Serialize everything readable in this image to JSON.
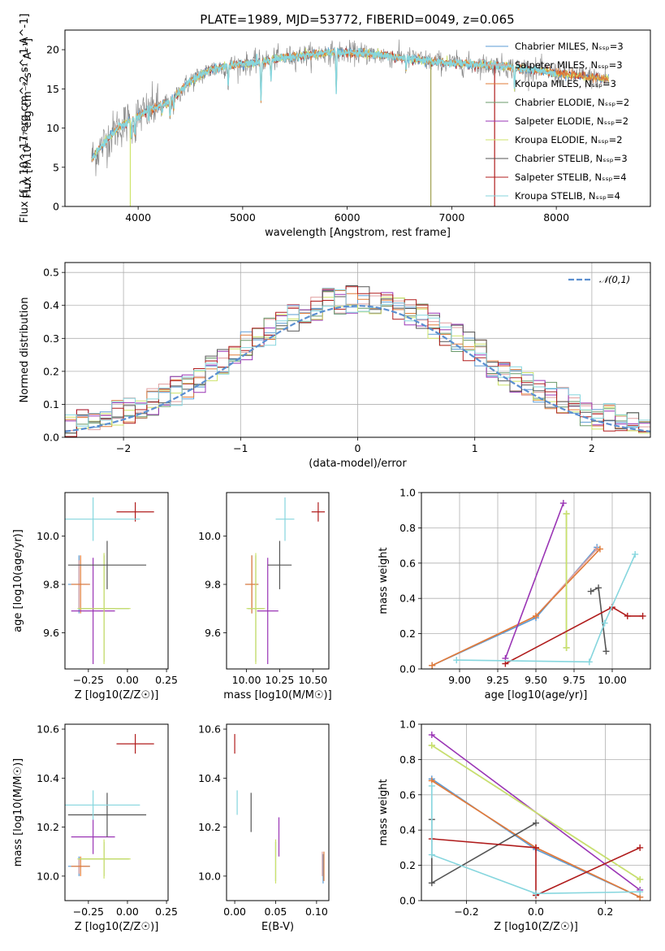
{
  "figure_title": "PLATE=1989, MJD=53772, FIBERID=0049, z=0.065",
  "colors": {
    "chabrier_miles": "#5b9bd5",
    "salpeter_miles": "#e0a0a0",
    "kroupa_miles": "#e07b39",
    "chabrier_elodie": "#6a9a6a",
    "salpeter_elodie": "#9a35b5",
    "kroupa_elodie": "#cde36a",
    "chabrier_stelib": "#555555",
    "salpeter_stelib": "#b01c1c",
    "kroupa_stelib": "#86d6de",
    "data_line": "#808080",
    "normal_curve": "#5b8fd0"
  },
  "legend_spectrum": [
    "Chabrier MILES, N_SSP=3",
    "Salpeter MILES, N_SSP=3",
    "Kroupa MILES, N_SSP=3",
    "Chabrier ELODIE, N_SSP=2",
    "Salpeter ELODIE, N_SSP=2",
    "Kroupa ELODIE, N_SSP=2",
    "Chabrier STELIB, N_SSP=3",
    "Salpeter STELIB, N_SSP=4",
    "Kroupa STELIB, N_SSP=4"
  ],
  "chart_data": [
    {
      "type": "line",
      "ylabel": "Flux [f_λ 10^-17 erg cm^-2 s^-1 A^-1]",
      "xlabel": "wavelength [Angstrom, rest frame]",
      "xlim": [
        3300,
        8900
      ],
      "ylim": [
        0,
        22.5
      ],
      "xticks": [
        4000,
        5000,
        6000,
        7000,
        8000
      ],
      "yticks": [
        0,
        5,
        10,
        15,
        20
      ],
      "continuum": [
        [
          3550,
          6.0
        ],
        [
          3700,
          8.5
        ],
        [
          3800,
          10.0
        ],
        [
          3900,
          10.8
        ],
        [
          4000,
          11.5
        ],
        [
          4100,
          12.3
        ],
        [
          4300,
          13.3
        ],
        [
          4500,
          16.0
        ],
        [
          4700,
          17.5
        ],
        [
          4900,
          18.0
        ],
        [
          5100,
          18.3
        ],
        [
          5300,
          18.8
        ],
        [
          5600,
          19.3
        ],
        [
          5900,
          19.7
        ],
        [
          6200,
          19.5
        ],
        [
          6500,
          19.0
        ],
        [
          6800,
          18.5
        ],
        [
          7100,
          18.2
        ],
        [
          7400,
          18.0
        ],
        [
          7700,
          17.6
        ],
        [
          8000,
          17.0
        ],
        [
          8300,
          16.5
        ],
        [
          8500,
          16.2
        ]
      ],
      "absorption_lines": [
        [
          3934,
          8.5
        ],
        [
          3969,
          9.0
        ],
        [
          4102,
          11.0
        ],
        [
          4227,
          12.0
        ],
        [
          4305,
          11.5
        ],
        [
          4340,
          12.5
        ],
        [
          4861,
          15.5
        ],
        [
          5175,
          13.5
        ],
        [
          5270,
          16.5
        ],
        [
          5895,
          14.5
        ],
        [
          6563,
          17.5
        ],
        [
          7600,
          15.0
        ]
      ],
      "drop_lines": [
        [
          3925,
          0.0
        ],
        [
          6800,
          0.0
        ],
        [
          7410,
          0.0
        ]
      ],
      "legend_position": "right"
    },
    {
      "type": "histogram",
      "xlabel": "(data-model)/error",
      "ylabel": "Normed distribution",
      "xlim": [
        -2.5,
        2.5
      ],
      "ylim": [
        0,
        0.53
      ],
      "xticks": [
        -2,
        -1,
        0,
        1,
        2
      ],
      "yticks": [
        0.0,
        0.1,
        0.2,
        0.3,
        0.4,
        0.5
      ],
      "bin_width": 0.1,
      "reference_label": "N(0,1)",
      "legend_position": "top-right"
    },
    {
      "type": "scatter",
      "name": "age_vs_Z",
      "xlabel": "Z [log10(Z/Z☉)]",
      "ylabel": "age [log10(age/yr)]",
      "xlim": [
        -0.4,
        0.26
      ],
      "ylim": [
        9.45,
        10.18
      ],
      "xticks": [
        -0.25,
        0.0,
        0.25
      ],
      "yticks": [
        9.6,
        9.8,
        10.0
      ],
      "points": [
        {
          "series": "chabrier_miles",
          "x": -0.31,
          "y": 9.8,
          "xerr": 0.07,
          "yerr": 0.12
        },
        {
          "series": "salpeter_miles",
          "x": -0.31,
          "y": 9.8,
          "xerr": 0.05,
          "yerr": 0.1
        },
        {
          "series": "kroupa_miles",
          "x": -0.3,
          "y": 9.8,
          "xerr": 0.06,
          "yerr": 0.12
        },
        {
          "series": "chabrier_elodie",
          "x": -0.15,
          "y": 9.7,
          "xerr": 0.16,
          "yerr": 0.22
        },
        {
          "series": "salpeter_elodie",
          "x": -0.22,
          "y": 9.69,
          "xerr": 0.14,
          "yerr": 0.22
        },
        {
          "series": "kroupa_elodie",
          "x": -0.15,
          "y": 9.7,
          "xerr": 0.17,
          "yerr": 0.23
        },
        {
          "series": "chabrier_stelib",
          "x": -0.13,
          "y": 9.88,
          "xerr": 0.25,
          "yerr": 0.1
        },
        {
          "series": "salpeter_stelib",
          "x": 0.05,
          "y": 10.1,
          "xerr": 0.12,
          "yerr": 0.04
        },
        {
          "series": "kroupa_stelib",
          "x": -0.22,
          "y": 10.07,
          "xerr": 0.3,
          "yerr": 0.09
        }
      ]
    },
    {
      "type": "scatter",
      "name": "age_vs_mass",
      "xlabel": "mass [log10(M/M☉)]",
      "ylabel": "",
      "xlim": [
        9.85,
        10.62
      ],
      "ylim": [
        9.45,
        10.18
      ],
      "xticks": [
        10.0,
        10.25,
        10.5
      ],
      "yticks": [
        9.6,
        9.8,
        10.0
      ],
      "points": [
        {
          "series": "chabrier_miles",
          "x": 10.04,
          "y": 9.8,
          "xerr": 0.05,
          "yerr": 0.12
        },
        {
          "series": "salpeter_miles",
          "x": 10.04,
          "y": 9.8,
          "xerr": 0.04,
          "yerr": 0.1
        },
        {
          "series": "kroupa_miles",
          "x": 10.04,
          "y": 9.8,
          "xerr": 0.05,
          "yerr": 0.12
        },
        {
          "series": "chabrier_elodie",
          "x": 10.07,
          "y": 9.7,
          "xerr": 0.06,
          "yerr": 0.22
        },
        {
          "series": "salpeter_elodie",
          "x": 10.16,
          "y": 9.69,
          "xerr": 0.08,
          "yerr": 0.22
        },
        {
          "series": "kroupa_elodie",
          "x": 10.07,
          "y": 9.7,
          "xerr": 0.07,
          "yerr": 0.23
        },
        {
          "series": "chabrier_stelib",
          "x": 10.25,
          "y": 9.88,
          "xerr": 0.09,
          "yerr": 0.1
        },
        {
          "series": "salpeter_stelib",
          "x": 10.54,
          "y": 10.1,
          "xerr": 0.05,
          "yerr": 0.04
        },
        {
          "series": "kroupa_stelib",
          "x": 10.29,
          "y": 10.07,
          "xerr": 0.07,
          "yerr": 0.09
        }
      ]
    },
    {
      "type": "line",
      "name": "weight_vs_age",
      "xlabel": "age [log10(age/yr)]",
      "ylabel": "mass weight",
      "xlim": [
        8.75,
        10.25
      ],
      "ylim": [
        0.0,
        1.0
      ],
      "xticks": [
        9.0,
        9.25,
        9.5,
        9.75,
        10.0
      ],
      "yticks": [
        0.0,
        0.2,
        0.4,
        0.6,
        0.8,
        1.0
      ],
      "series": [
        {
          "series": "chabrier_miles",
          "x": [
            8.82,
            9.5,
            9.9
          ],
          "y": [
            0.02,
            0.29,
            0.69
          ]
        },
        {
          "series": "salpeter_miles",
          "x": [
            8.82,
            9.5,
            9.9
          ],
          "y": [
            0.02,
            0.3,
            0.68
          ]
        },
        {
          "series": "kroupa_miles",
          "x": [
            8.82,
            9.5,
            9.92
          ],
          "y": [
            0.02,
            0.3,
            0.68
          ]
        },
        {
          "series": "chabrier_elodie",
          "x": [
            9.7,
            9.7
          ],
          "y": [
            0.12,
            0.88
          ]
        },
        {
          "series": "salpeter_elodie",
          "x": [
            9.3,
            9.68
          ],
          "y": [
            0.06,
            0.94
          ]
        },
        {
          "series": "kroupa_elodie",
          "x": [
            9.7,
            9.7
          ],
          "y": [
            0.12,
            0.88
          ]
        },
        {
          "series": "chabrier_stelib",
          "x": [
            9.86,
            9.91,
            9.96
          ],
          "y": [
            0.44,
            0.46,
            0.1
          ]
        },
        {
          "series": "salpeter_stelib",
          "x": [
            9.3,
            10.0,
            10.1,
            10.2
          ],
          "y": [
            0.03,
            0.35,
            0.3,
            0.3
          ]
        },
        {
          "series": "kroupa_stelib",
          "x": [
            8.98,
            9.85,
            9.95,
            10.15
          ],
          "y": [
            0.05,
            0.04,
            0.26,
            0.65
          ]
        }
      ]
    },
    {
      "type": "scatter",
      "name": "mass_vs_Z",
      "xlabel": "Z [log10(Z/Z☉)]",
      "ylabel": "mass [log10(M/M☉)]",
      "xlim": [
        -0.4,
        0.26
      ],
      "ylim": [
        9.9,
        10.62
      ],
      "xticks": [
        -0.25,
        0.0,
        0.25
      ],
      "yticks": [
        10.0,
        10.2,
        10.4,
        10.6
      ],
      "points": [
        {
          "series": "chabrier_miles",
          "x": -0.31,
          "y": 10.04,
          "xerr": 0.07,
          "yerr": 0.04
        },
        {
          "series": "salpeter_miles",
          "x": -0.31,
          "y": 10.04,
          "xerr": 0.05,
          "yerr": 0.03
        },
        {
          "series": "kroupa_miles",
          "x": -0.3,
          "y": 10.04,
          "xerr": 0.06,
          "yerr": 0.04
        },
        {
          "series": "chabrier_elodie",
          "x": -0.15,
          "y": 10.07,
          "xerr": 0.16,
          "yerr": 0.07
        },
        {
          "series": "salpeter_elodie",
          "x": -0.22,
          "y": 10.16,
          "xerr": 0.14,
          "yerr": 0.07
        },
        {
          "series": "kroupa_elodie",
          "x": -0.15,
          "y": 10.07,
          "xerr": 0.17,
          "yerr": 0.08
        },
        {
          "series": "chabrier_stelib",
          "x": -0.13,
          "y": 10.25,
          "xerr": 0.25,
          "yerr": 0.09
        },
        {
          "series": "salpeter_stelib",
          "x": 0.05,
          "y": 10.54,
          "xerr": 0.12,
          "yerr": 0.04
        },
        {
          "series": "kroupa_stelib",
          "x": -0.22,
          "y": 10.29,
          "xerr": 0.3,
          "yerr": 0.06
        }
      ]
    },
    {
      "type": "scatter",
      "name": "mass_vs_ebv",
      "xlabel": "E(B-V)",
      "ylabel": "",
      "xlim": [
        -0.01,
        0.115
      ],
      "ylim": [
        9.9,
        10.62
      ],
      "xticks": [
        0.0,
        0.05,
        0.1
      ],
      "yticks": [
        10.0,
        10.2,
        10.4,
        10.6
      ],
      "points": [
        {
          "series": "chabrier_miles",
          "x": 0.108,
          "y": 10.03,
          "yerr": 0.06
        },
        {
          "series": "salpeter_miles",
          "x": 0.107,
          "y": 10.05,
          "yerr": 0.05
        },
        {
          "series": "kroupa_miles",
          "x": 0.109,
          "y": 10.04,
          "yerr": 0.06
        },
        {
          "series": "chabrier_elodie",
          "x": 0.05,
          "y": 10.06,
          "yerr": 0.08
        },
        {
          "series": "salpeter_elodie",
          "x": 0.054,
          "y": 10.16,
          "yerr": 0.08
        },
        {
          "series": "kroupa_elodie",
          "x": 0.05,
          "y": 10.06,
          "yerr": 0.09
        },
        {
          "series": "chabrier_stelib",
          "x": 0.02,
          "y": 10.26,
          "yerr": 0.08
        },
        {
          "series": "salpeter_stelib",
          "x": 0.0,
          "y": 10.54,
          "yerr": 0.04
        },
        {
          "series": "kroupa_stelib",
          "x": 0.003,
          "y": 10.3,
          "yerr": 0.05
        }
      ]
    },
    {
      "type": "line",
      "name": "weight_vs_Z",
      "xlabel": "Z [log10(Z/Z☉)]",
      "ylabel": "mass weight",
      "xlim": [
        -0.33,
        0.33
      ],
      "ylim": [
        0.0,
        1.0
      ],
      "xticks": [
        -0.2,
        0.0,
        0.2
      ],
      "yticks": [
        0.0,
        0.2,
        0.4,
        0.6,
        0.8,
        1.0
      ],
      "series": [
        {
          "series": "chabrier_miles",
          "x": [
            -0.3,
            0.0,
            0.3
          ],
          "y": [
            0.69,
            0.29,
            0.02
          ]
        },
        {
          "series": "salpeter_miles",
          "x": [
            -0.3,
            0.0,
            0.3
          ],
          "y": [
            0.68,
            0.3,
            0.02
          ]
        },
        {
          "series": "kroupa_miles",
          "x": [
            -0.3,
            0.0,
            0.3
          ],
          "y": [
            0.68,
            0.3,
            0.02
          ]
        },
        {
          "series": "chabrier_elodie",
          "x": [
            -0.3,
            0.3
          ],
          "y": [
            0.88,
            0.12
          ]
        },
        {
          "series": "salpeter_elodie",
          "x": [
            -0.3,
            0.3
          ],
          "y": [
            0.94,
            0.06
          ]
        },
        {
          "series": "kroupa_elodie",
          "x": [
            -0.3,
            0.3
          ],
          "y": [
            0.88,
            0.12
          ]
        },
        {
          "series": "chabrier_stelib",
          "x": [
            -0.3,
            -0.3,
            0.0
          ],
          "y": [
            0.46,
            0.1,
            0.44
          ]
        },
        {
          "series": "salpeter_stelib",
          "x": [
            -0.3,
            0.0,
            0.0,
            0.3
          ],
          "y": [
            0.35,
            0.3,
            0.03,
            0.3
          ]
        },
        {
          "series": "kroupa_stelib",
          "x": [
            -0.3,
            -0.3,
            0.0,
            0.3
          ],
          "y": [
            0.65,
            0.26,
            0.04,
            0.05
          ]
        }
      ]
    }
  ]
}
